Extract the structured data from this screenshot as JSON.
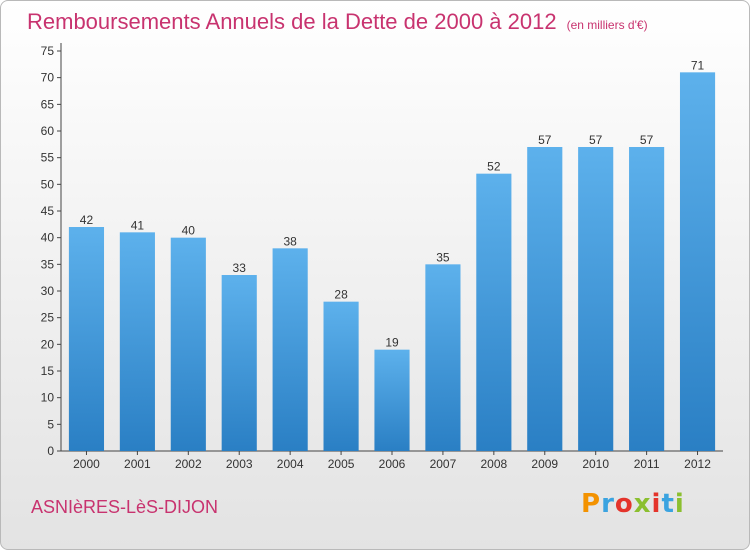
{
  "header": {
    "title": "Remboursements Annuels de la Dette de 2000 à 2012",
    "unit": "(en milliers d'€)"
  },
  "footer": {
    "commune": "ASNIèRES-LèS-DIJON",
    "logo_text": "Proxiti"
  },
  "colors": {
    "title": "#c8336f",
    "bar_top": "#5db1ec",
    "bar_bottom": "#2a7fc4",
    "logo": [
      "#f39200",
      "#3aa3e0",
      "#e4342b",
      "#8bbf2f",
      "#e4342b",
      "#3aa3e0",
      "#8bbf2f"
    ]
  },
  "chart_data": {
    "type": "bar",
    "categories": [
      "2000",
      "2001",
      "2002",
      "2003",
      "2004",
      "2005",
      "2006",
      "2007",
      "2008",
      "2009",
      "2010",
      "2011",
      "2012"
    ],
    "values": [
      42,
      41,
      40,
      33,
      38,
      28,
      19,
      35,
      52,
      57,
      57,
      57,
      71
    ],
    "ylim": [
      0,
      75
    ],
    "yticks": [
      0,
      5,
      10,
      15,
      20,
      25,
      30,
      35,
      40,
      45,
      50,
      55,
      60,
      65,
      70,
      75
    ],
    "grid": false,
    "data_labels": true
  }
}
